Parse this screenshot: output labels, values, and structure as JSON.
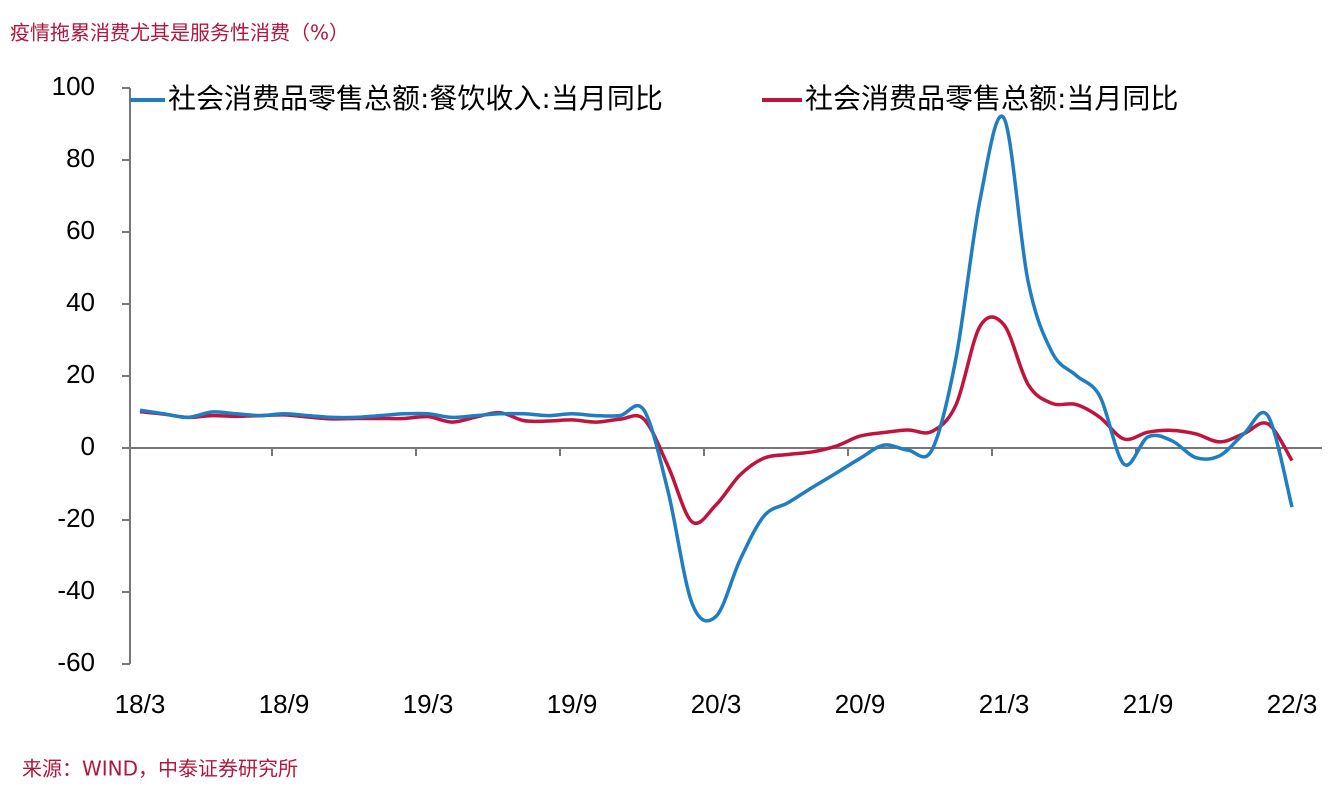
{
  "chart_data": {
    "type": "line",
    "title": "疫情拖累消费尤其是服务性消费（%）",
    "source": "来源：WIND，中泰证券研究所",
    "categories": [
      "18/3",
      null,
      null,
      null,
      null,
      null,
      "18/9",
      null,
      null,
      null,
      null,
      null,
      "19/3",
      null,
      null,
      null,
      null,
      null,
      "19/9",
      null,
      null,
      null,
      null,
      null,
      "20/3",
      null,
      null,
      null,
      null,
      null,
      "20/9",
      null,
      null,
      null,
      null,
      null,
      "21/3",
      null,
      null,
      null,
      null,
      null,
      "21/9",
      null,
      null,
      null,
      null,
      null,
      "22/3"
    ],
    "series": [
      {
        "name": "社会消费品零售总额:餐饮收入:当月同比",
        "color": "#1f7dc2",
        "values": [
          10.5,
          9.5,
          8.5,
          10,
          9.5,
          9,
          9.5,
          9,
          8.5,
          8.5,
          9,
          9.5,
          9.5,
          8.5,
          9,
          9.5,
          9.5,
          9,
          9.5,
          9,
          9,
          10.5,
          -12,
          -43.1,
          -46.8,
          -31.1,
          -18.9,
          -15.2,
          -11,
          -7,
          -2.9,
          0.8,
          -0.6,
          -0.5,
          25,
          68.9,
          91.6,
          46.4,
          26.6,
          20.2,
          14.3,
          -4.5,
          3.1,
          2.0,
          -2.7,
          -2.1,
          4,
          8.9,
          -16.4
        ]
      },
      {
        "name": "社会消费品零售总额:当月同比",
        "color": "#c0143c",
        "values": [
          10.1,
          9.4,
          8.5,
          9.0,
          8.8,
          9.0,
          9.2,
          8.6,
          8.1,
          8.2,
          8.2,
          8.2,
          8.7,
          7.2,
          8.6,
          9.8,
          7.6,
          7.5,
          7.8,
          7.2,
          8.0,
          8.0,
          -5,
          -20.5,
          -15.8,
          -7.5,
          -2.8,
          -1.8,
          -1.1,
          0.5,
          3.3,
          4.3,
          5.0,
          4.6,
          12,
          33.8,
          34.2,
          17.7,
          12.4,
          12.1,
          8.5,
          2.5,
          4.4,
          4.9,
          3.9,
          1.7,
          4,
          6.7,
          -3.5
        ]
      }
    ],
    "ylim": [
      -60,
      100
    ],
    "yticks": [
      -60,
      -40,
      -20,
      0,
      20,
      40,
      60,
      80,
      100
    ],
    "legend": "top",
    "grid": false
  }
}
